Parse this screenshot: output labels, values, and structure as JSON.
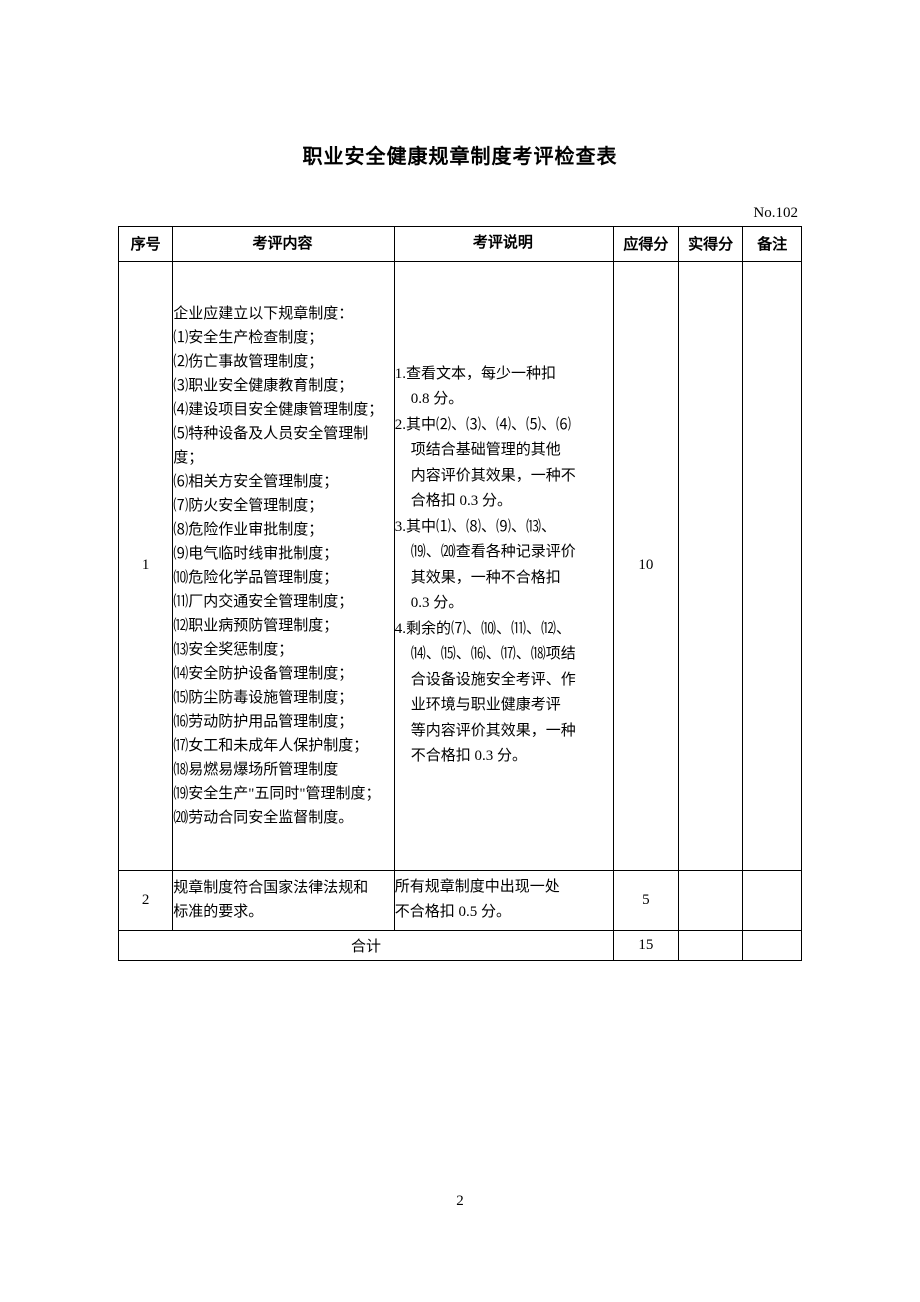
{
  "title": "职业安全健康规章制度考评检查表",
  "docNumber": "No.102",
  "pageNumber": "2",
  "headers": {
    "seq": "序号",
    "content": "考评内容",
    "desc": "考评说明",
    "maxScore": "应得分",
    "actualScore": "实得分",
    "note": "备注"
  },
  "rows": [
    {
      "seq": "1",
      "contentIntro": "企业应建立以下规章制度：",
      "contentItems": [
        "⑴安全生产检查制度；",
        "⑵伤亡事故管理制度；",
        "⑶职业安全健康教育制度；",
        "⑷建设项目安全健康管理制度；",
        "⑸特种设备及人员安全管理制度；",
        "⑹相关方安全管理制度；",
        "⑺防火安全管理制度；",
        "⑻危险作业审批制度；",
        "⑼电气临时线审批制度；",
        "⑽危险化学品管理制度；",
        "⑾厂内交通安全管理制度；",
        "⑿职业病预防管理制度；",
        "⒀安全奖惩制度；",
        "⒁安全防护设备管理制度；",
        "⒂防尘防毒设施管理制度；",
        "⒃劳动防护用品管理制度；",
        "⒄女工和未成年人保护制度；",
        "⒅易燃易爆场所管理制度",
        "⒆安全生产\"五同时\"管理制度；",
        "⒇劳动合同安全监督制度。"
      ],
      "descItems": [
        {
          "num": "1.",
          "lines": [
            "查看文本，每少一种扣",
            "0.8 分。"
          ]
        },
        {
          "num": "2.",
          "lines": [
            "其中⑵、⑶、⑷、⑸、⑹",
            "项结合基础管理的其他",
            "内容评价其效果，一种不",
            "合格扣 0.3 分。"
          ]
        },
        {
          "num": "3.",
          "lines": [
            "其中⑴、⑻、⑼、⒀、",
            "⒆、⒇查看各种记录评价",
            "其效果，一种不合格扣",
            "0.3 分。"
          ]
        },
        {
          "num": "4.",
          "lines": [
            "剩余的⑺、⑽、⑾、⑿、",
            "⒁、⒂、⒃、⒄、⒅项结",
            "合设备设施安全考评、作",
            "业环境与职业健康考评",
            "等内容评价其效果，一种",
            "不合格扣 0.3 分。"
          ]
        }
      ],
      "maxScore": "10",
      "actualScore": "",
      "note": ""
    },
    {
      "seq": "2",
      "contentLines": [
        "规章制度符合国家法律法规和",
        "标准的要求。"
      ],
      "descLines": [
        "所有规章制度中出现一处",
        "不合格扣 0.5 分。"
      ],
      "maxScore": "5",
      "actualScore": "",
      "note": ""
    }
  ],
  "total": {
    "label": "合计",
    "maxScore": "15",
    "actualScore": "",
    "note": ""
  },
  "colors": {
    "border": "#000000",
    "background": "#ffffff",
    "text": "#000000"
  }
}
